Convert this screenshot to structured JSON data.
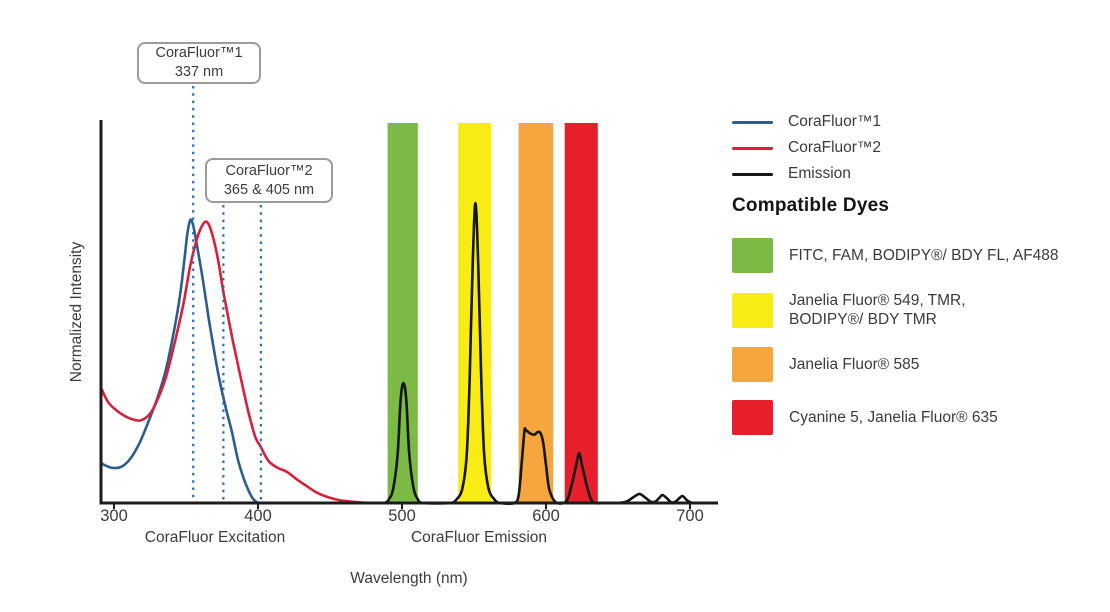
{
  "figure": {
    "y_axis_label": "Normalized Intensity",
    "x_axis_label": "Wavelength (nm)",
    "section_labels": [
      "CoraFluor Excitation",
      "CoraFluor Emission"
    ]
  },
  "annotations": [
    {
      "title": "CoraFluor™1",
      "value": "337 nm"
    },
    {
      "title": "CoraFluor™2",
      "value": "365 & 405 nm"
    }
  ],
  "legend": {
    "items": [
      {
        "label": "CoraFluor™1",
        "color": "#2B5E8D"
      },
      {
        "label": "CoraFluor™2",
        "color": "#D7213C"
      },
      {
        "label": "Emission",
        "color": "#161616"
      }
    ]
  },
  "compatible_dyes": {
    "heading": "Compatible Dyes",
    "items": [
      {
        "label": "FITC, FAM, BODIPY®/ BDY FL, AF488",
        "color": "#7CBA46"
      },
      {
        "label": "Janelia Fluor® 549, TMR,\nBODIPY®/ BDY TMR",
        "color": "#F9EC15"
      },
      {
        "label": "Janelia Fluor® 585",
        "color": "#F6A63C"
      },
      {
        "label": "Cyanine 5, Janelia Fluor® 635",
        "color": "#E61F2B"
      }
    ]
  },
  "chart_data": {
    "type": "line",
    "title": "",
    "xlabel": "Wavelength (nm)",
    "ylabel": "Normalized Intensity",
    "x_ticks": [
      300,
      400,
      500,
      600,
      700
    ],
    "x_range_nm": [
      291,
      719
    ],
    "y_range": [
      0,
      1
    ],
    "grid": false,
    "legend_position": "right",
    "excitation_markers": [
      {
        "label": "337 nm",
        "x_nm": 355
      },
      {
        "label": "365 nm",
        "x_nm": 376
      },
      {
        "label": "405 nm",
        "x_nm": 402
      }
    ],
    "emission_bands": [
      {
        "name": "FITC FAM BDY-FL AF488 window",
        "color": "#7CBA46",
        "from_nm": 490,
        "to_nm": 511
      },
      {
        "name": "JF549 TMR BDY-TMR window",
        "color": "#F9EC15",
        "from_nm": 539,
        "to_nm": 562
      },
      {
        "name": "JF585 window",
        "color": "#F6A63C",
        "from_nm": 581,
        "to_nm": 605
      },
      {
        "name": "Cy5 JF635 window",
        "color": "#E61F2B",
        "from_nm": 613,
        "to_nm": 636
      }
    ],
    "series": [
      {
        "name": "CoraFluor1 excitation",
        "color": "#2B5E8D",
        "points": [
          [
            291,
            0.105
          ],
          [
            295,
            0.097
          ],
          [
            300,
            0.092
          ],
          [
            306,
            0.097
          ],
          [
            312,
            0.12
          ],
          [
            318,
            0.16
          ],
          [
            324,
            0.215
          ],
          [
            330,
            0.275
          ],
          [
            336,
            0.35
          ],
          [
            342,
            0.46
          ],
          [
            346,
            0.55
          ],
          [
            349,
            0.645
          ],
          [
            351,
            0.71
          ],
          [
            353,
            0.745
          ],
          [
            355,
            0.73
          ],
          [
            358,
            0.67
          ],
          [
            362,
            0.58
          ],
          [
            366,
            0.48
          ],
          [
            370,
            0.39
          ],
          [
            374,
            0.31
          ],
          [
            378,
            0.245
          ],
          [
            382,
            0.185
          ],
          [
            386,
            0.115
          ],
          [
            390,
            0.065
          ],
          [
            394,
            0.028
          ],
          [
            397,
            0.009
          ],
          [
            400,
            0
          ]
        ]
      },
      {
        "name": "CoraFluor2 excitation",
        "color": "#D7213C",
        "points": [
          [
            291,
            0.303
          ],
          [
            296,
            0.265
          ],
          [
            302,
            0.243
          ],
          [
            308,
            0.228
          ],
          [
            314,
            0.219
          ],
          [
            319,
            0.218
          ],
          [
            325,
            0.235
          ],
          [
            330,
            0.27
          ],
          [
            336,
            0.33
          ],
          [
            342,
            0.42
          ],
          [
            348,
            0.52
          ],
          [
            353,
            0.625
          ],
          [
            358,
            0.7
          ],
          [
            362,
            0.735
          ],
          [
            365,
            0.738
          ],
          [
            368,
            0.71
          ],
          [
            372,
            0.645
          ],
          [
            376,
            0.555
          ],
          [
            380,
            0.475
          ],
          [
            384,
            0.4
          ],
          [
            388,
            0.33
          ],
          [
            393,
            0.245
          ],
          [
            398,
            0.175
          ],
          [
            402,
            0.147
          ],
          [
            407,
            0.112
          ],
          [
            413,
            0.094
          ],
          [
            420,
            0.082
          ],
          [
            427,
            0.062
          ],
          [
            434,
            0.044
          ],
          [
            441,
            0.027
          ],
          [
            448,
            0.016
          ],
          [
            456,
            0.008
          ],
          [
            464,
            0.004
          ],
          [
            472,
            0.001
          ],
          [
            482,
            0
          ]
        ]
      },
      {
        "name": "Emission",
        "color": "#161616",
        "points": [
          [
            474,
            0
          ],
          [
            487,
            0
          ],
          [
            491,
            0.01
          ],
          [
            494,
            0.04
          ],
          [
            497,
            0.13
          ],
          [
            499,
            0.27
          ],
          [
            501,
            0.316
          ],
          [
            503,
            0.27
          ],
          [
            505,
            0.13
          ],
          [
            508,
            0.04
          ],
          [
            511,
            0.01
          ],
          [
            515,
            0
          ],
          [
            533,
            0
          ],
          [
            538,
            0.01
          ],
          [
            542,
            0.04
          ],
          [
            545,
            0.13
          ],
          [
            547,
            0.33
          ],
          [
            549,
            0.62
          ],
          [
            551,
            0.789
          ],
          [
            553,
            0.62
          ],
          [
            555,
            0.33
          ],
          [
            557,
            0.13
          ],
          [
            560,
            0.04
          ],
          [
            564,
            0.01
          ],
          [
            568,
            0
          ],
          [
            578,
            0
          ],
          [
            581,
            0.02
          ],
          [
            583,
            0.1
          ],
          [
            585,
            0.188
          ],
          [
            586,
            0.192
          ],
          [
            589,
            0.183
          ],
          [
            592,
            0.18
          ],
          [
            594,
            0.186
          ],
          [
            596,
            0.185
          ],
          [
            598,
            0.16
          ],
          [
            600,
            0.1
          ],
          [
            602,
            0.04
          ],
          [
            605,
            0.01
          ],
          [
            608,
            0
          ],
          [
            612,
            0
          ],
          [
            615,
            0.01
          ],
          [
            618,
            0.05
          ],
          [
            621,
            0.1
          ],
          [
            623,
            0.131
          ],
          [
            625,
            0.1
          ],
          [
            628,
            0.05
          ],
          [
            631,
            0.012
          ],
          [
            634,
            0
          ],
          [
            640,
            0
          ],
          [
            650,
            0
          ],
          [
            656,
            0.004
          ],
          [
            661,
            0.016
          ],
          [
            665,
            0.024
          ],
          [
            669,
            0.014
          ],
          [
            673,
            0.003
          ],
          [
            676,
            0.004
          ],
          [
            679,
            0.015
          ],
          [
            681,
            0.021
          ],
          [
            684,
            0.012
          ],
          [
            687,
            0.002
          ],
          [
            690,
            0.004
          ],
          [
            693,
            0.014
          ],
          [
            695,
            0.018
          ],
          [
            698,
            0.007
          ],
          [
            701,
            0.001
          ],
          [
            706,
            0
          ],
          [
            713,
            0
          ]
        ]
      }
    ]
  }
}
